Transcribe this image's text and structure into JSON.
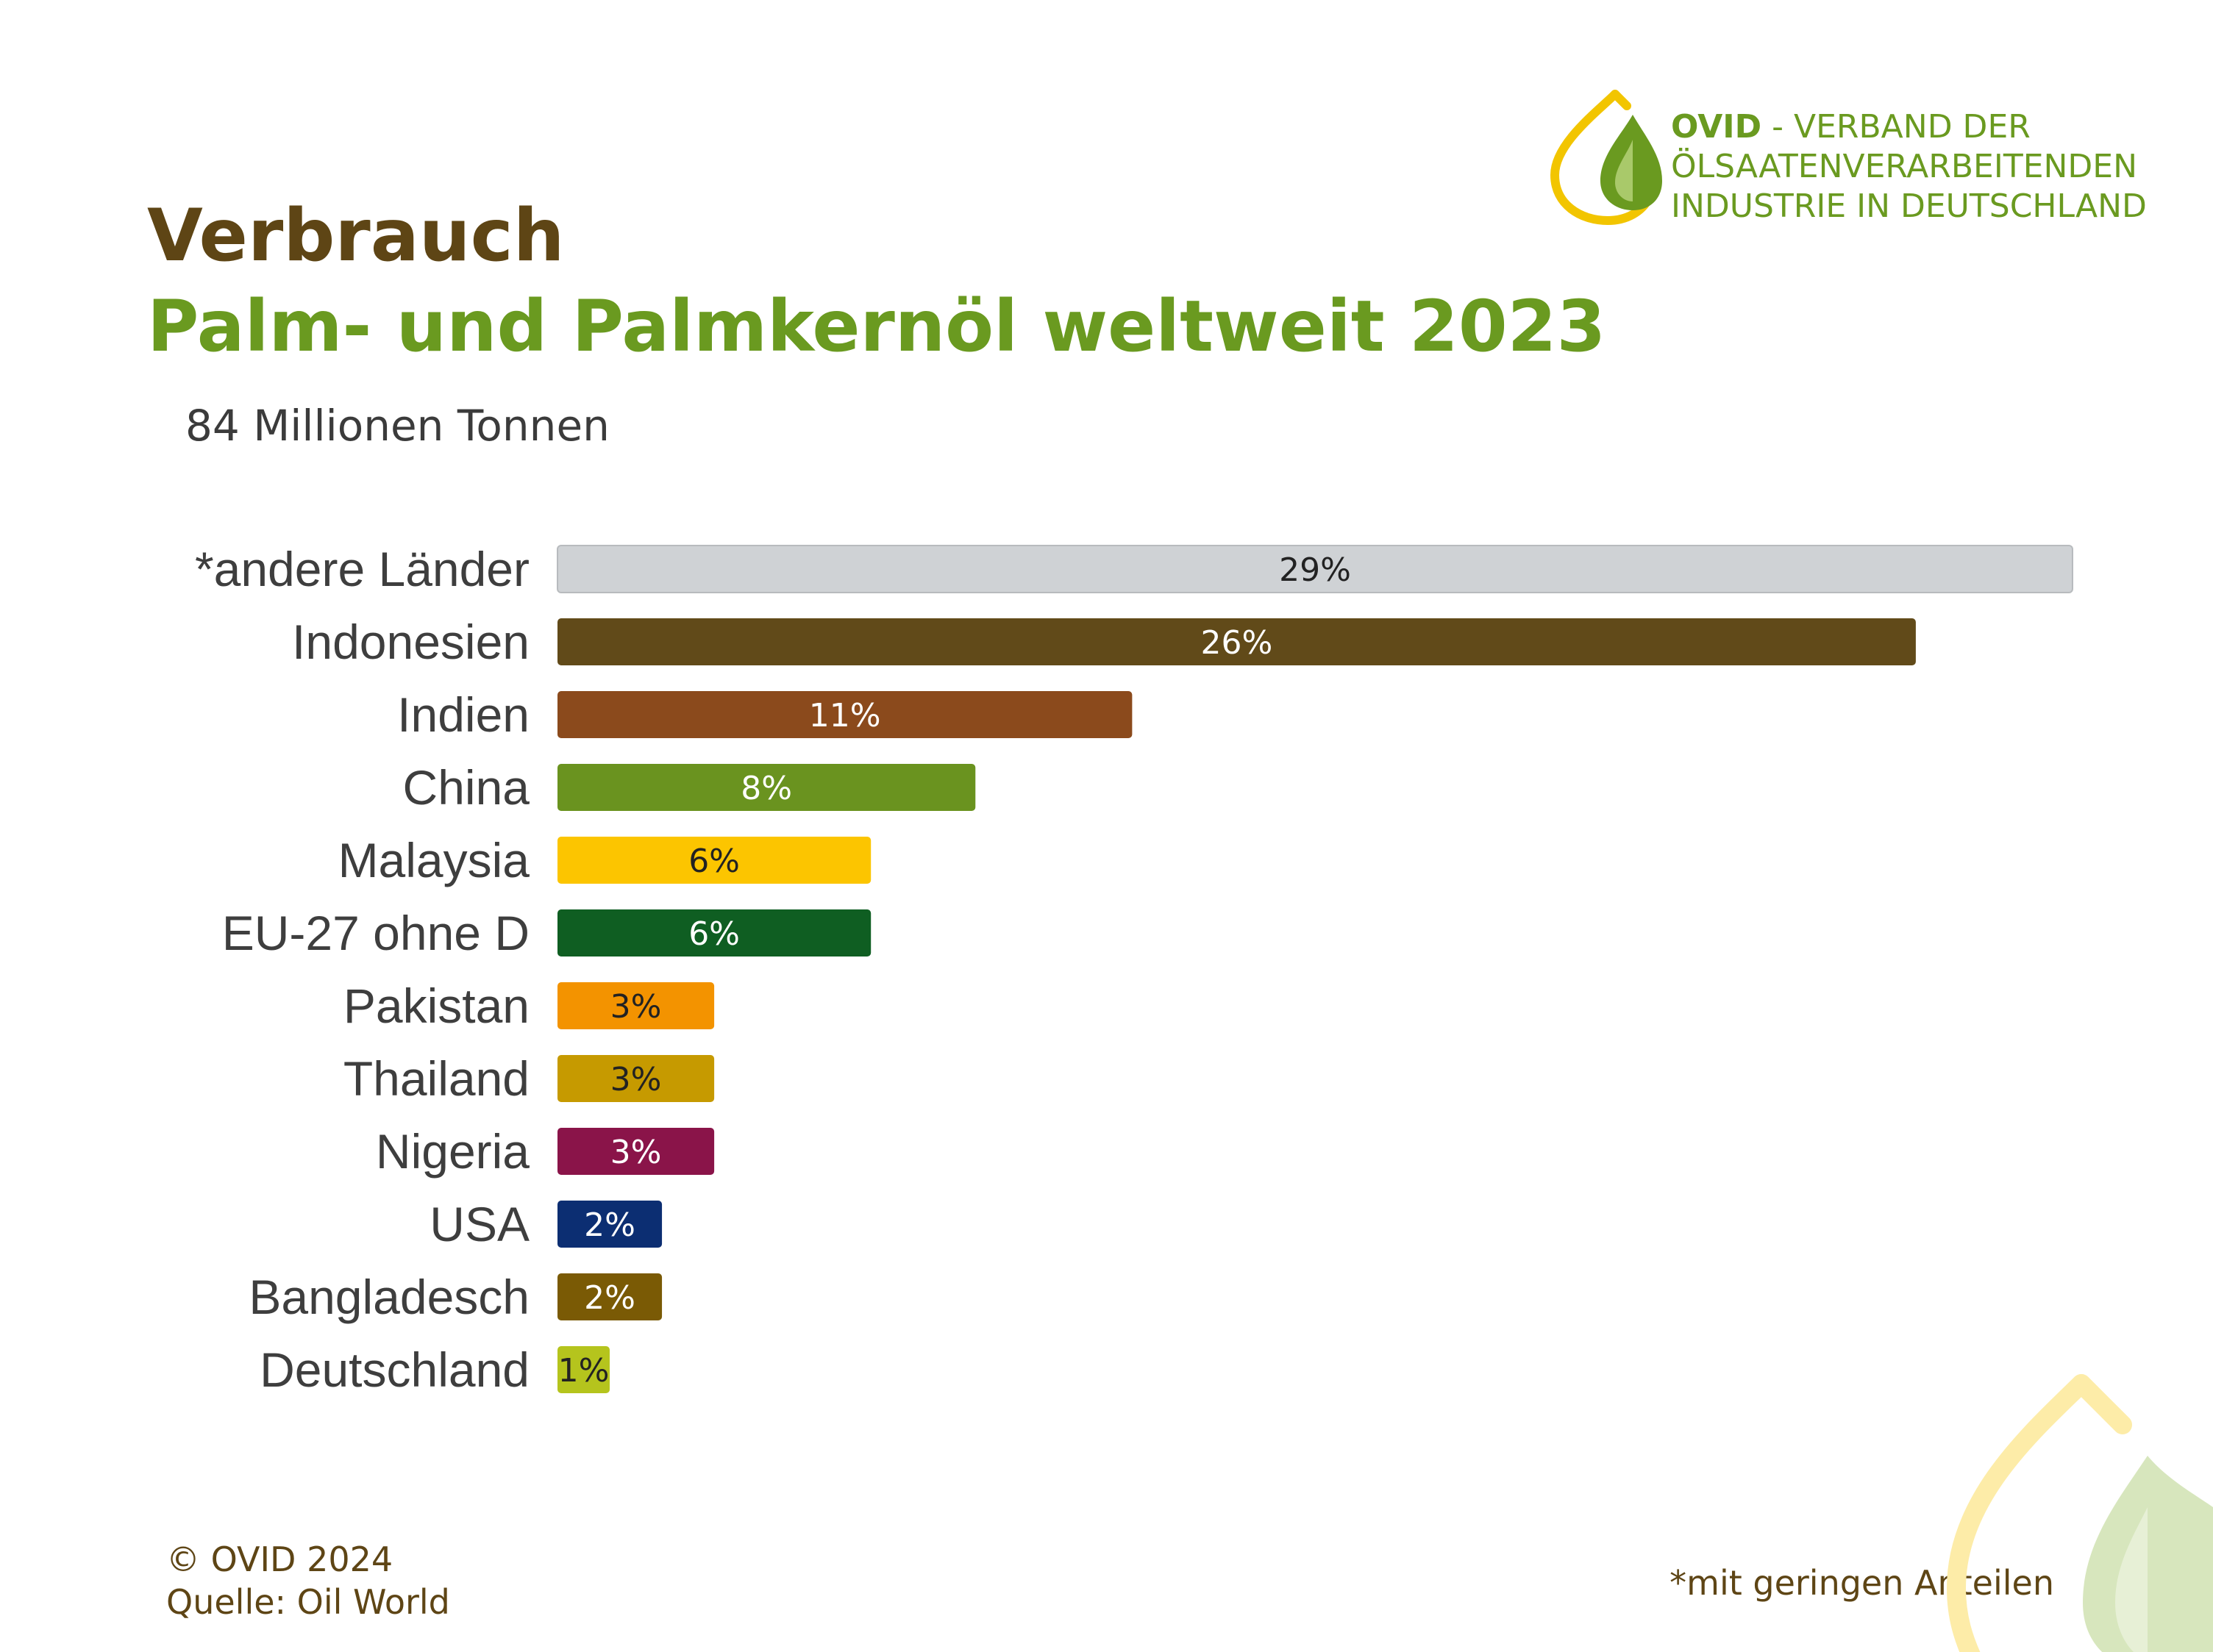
{
  "header": {
    "title": "Verbrauch",
    "subtitle": "Palm- und Palmkernöl weltweit 2023",
    "total": "84 Millionen Tonnen"
  },
  "organization": {
    "name": "OVID",
    "line1_rest": " - VERBAND DER",
    "line2": "ÖLSAATENVERARBEITENDEN",
    "line3": "INDUSTRIE IN DEUTSCHLAND",
    "logo_icon": "oil-drop-logo-icon"
  },
  "footer": {
    "copyright": "© OVID 2024",
    "source": "Quelle: Oil World",
    "footnote": "*mit geringen Anteilen"
  },
  "colors": {
    "title": "#5e4515",
    "accent_green": "#6a9a20",
    "logo_yellow": "#f2c500"
  },
  "chart_data": {
    "type": "bar",
    "orientation": "horizontal",
    "title": "Palm- und Palmkernöl weltweit 2023",
    "unit": "%",
    "grid": false,
    "legend": "none",
    "categories": [
      "*andere Länder",
      "Indonesien",
      "Indien",
      "China",
      "Malaysia",
      "EU-27 ohne D",
      "Pakistan",
      "Thailand",
      "Nigeria",
      "USA",
      "Bangladesch",
      "Deutschland"
    ],
    "values": [
      29,
      26,
      11,
      8,
      6,
      6,
      3,
      3,
      3,
      2,
      2,
      1
    ],
    "value_labels": [
      "29%",
      "26%",
      "11%",
      "8%",
      "6%",
      "6%",
      "3%",
      "3%",
      "3%",
      "2%",
      "2%",
      "1%"
    ],
    "bar_colors": [
      "#cfd2d5",
      "#614a19",
      "#8b4a1c",
      "#6a931f",
      "#fcc500",
      "#0f5e22",
      "#f39300",
      "#c69a00",
      "#8a1449",
      "#0c2e72",
      "#7a5a05",
      "#b5c41d"
    ],
    "label_colors": [
      "#222222",
      "#ffffff",
      "#ffffff",
      "#ffffff",
      "#222222",
      "#ffffff",
      "#222222",
      "#222222",
      "#ffffff",
      "#ffffff",
      "#ffffff",
      "#222222"
    ]
  }
}
